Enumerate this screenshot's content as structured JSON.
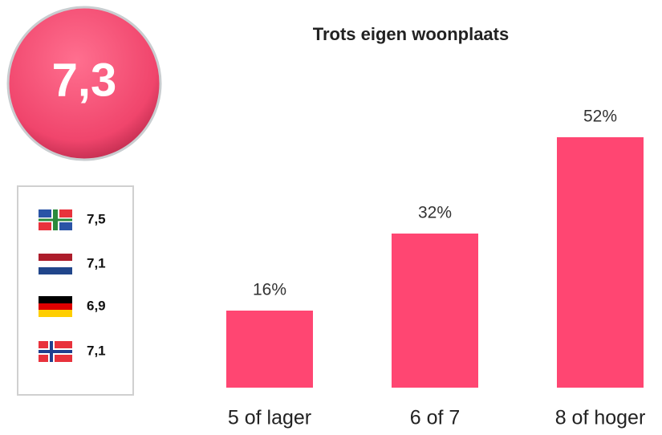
{
  "score": "7,3",
  "comparison": [
    "7,5",
    "7,1",
    "6,9",
    "7,1"
  ],
  "chart_data": {
    "type": "bar",
    "title": "Trots eigen woonplaats",
    "categories": [
      "5 of lager",
      "6 of 7",
      "8 of hoger"
    ],
    "values": [
      16,
      32,
      52
    ],
    "value_labels": [
      "16%",
      "32%",
      "52%"
    ],
    "color": "#ff4672",
    "ylim": [
      0,
      60
    ]
  }
}
